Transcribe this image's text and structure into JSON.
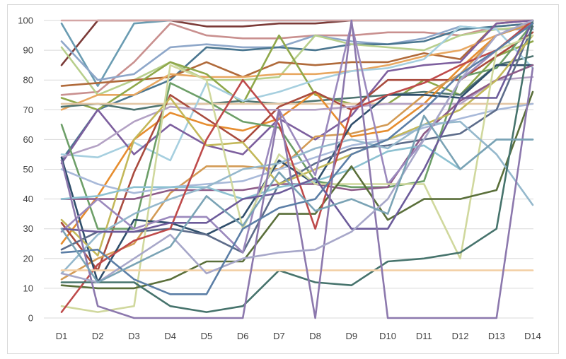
{
  "chart_data": {
    "type": "line",
    "title": "",
    "xlabel": "",
    "ylabel": "",
    "ylim": [
      0,
      100
    ],
    "yticks": [
      0,
      10,
      20,
      30,
      40,
      50,
      60,
      70,
      80,
      90,
      100
    ],
    "grid": true,
    "legend": "none",
    "categories": [
      "D1",
      "D2",
      "D3",
      "D4",
      "D5",
      "D6",
      "D7",
      "D8",
      "D9",
      "D10",
      "D11",
      "D12",
      "D13",
      "D14"
    ],
    "series": [
      {
        "color": "#7b3a37",
        "values": [
          85,
          100,
          100,
          100,
          98,
          98,
          99,
          99,
          100,
          100,
          100,
          100,
          100,
          100
        ]
      },
      {
        "color": "#6a9cb2",
        "values": [
          99,
          78,
          99,
          100,
          100,
          100,
          100,
          100,
          100,
          100,
          100,
          100,
          100,
          100
        ]
      },
      {
        "color": "#d4a6a5",
        "values": [
          100,
          100,
          100,
          100,
          100,
          100,
          100,
          100,
          100,
          100,
          100,
          100,
          100,
          100
        ]
      },
      {
        "color": "#c9908f",
        "values": [
          75,
          76,
          86,
          99,
          95,
          94,
          94,
          95,
          95,
          96,
          96,
          95,
          98,
          99
        ]
      },
      {
        "color": "#8ea7c9",
        "values": [
          93,
          80,
          82,
          91,
          92,
          91,
          91,
          95,
          93,
          92,
          94,
          98,
          97,
          97
        ]
      },
      {
        "color": "#4a7690",
        "values": [
          53,
          70,
          75,
          80,
          91,
          90,
          91,
          90,
          92,
          92,
          93,
          97,
          98,
          99
        ]
      },
      {
        "color": "#b7cf8c",
        "values": [
          91,
          75,
          80,
          86,
          80,
          80,
          81,
          95,
          92,
          91,
          90,
          95,
          97,
          98
        ]
      },
      {
        "color": "#b06a3a",
        "values": [
          78,
          79,
          80,
          81,
          86,
          81,
          86,
          85,
          86,
          86,
          89,
          87,
          99,
          100
        ]
      },
      {
        "color": "#e8a760",
        "values": [
          70,
          75,
          75,
          82,
          81,
          81,
          82,
          82,
          83,
          85,
          88,
          90,
          95,
          100
        ]
      },
      {
        "color": "#8fa84a",
        "values": [
          74,
          70,
          78,
          86,
          82,
          72,
          95,
          75,
          72,
          72,
          80,
          75,
          88,
          93
        ]
      },
      {
        "color": "#4e7470",
        "values": [
          71,
          72,
          70,
          72,
          72,
          73,
          72,
          73,
          74,
          75,
          76,
          75,
          85,
          88
        ]
      },
      {
        "color": "#e3c6a5",
        "values": [
          72,
          72,
          72,
          72,
          72,
          72,
          72,
          72,
          72,
          72,
          72,
          72,
          72,
          72
        ]
      },
      {
        "color": "#a6cfdf",
        "values": [
          55,
          54,
          59,
          53,
          79,
          73,
          76,
          80,
          83,
          84,
          87,
          98,
          97,
          84
        ]
      },
      {
        "color": "#7d5f9e",
        "values": [
          52,
          70,
          55,
          65,
          58,
          55,
          67,
          60,
          68,
          83,
          85,
          86,
          99,
          100
        ]
      },
      {
        "color": "#e68d2f",
        "values": [
          25,
          41,
          60,
          69,
          65,
          63,
          67,
          76,
          61,
          63,
          72,
          84,
          95,
          99
        ]
      },
      {
        "color": "#a94b3e",
        "values": [
          32,
          16,
          49,
          75,
          67,
          59,
          71,
          76,
          70,
          80,
          80,
          80,
          88,
          96
        ]
      },
      {
        "color": "#b3a1c4",
        "values": [
          54,
          58,
          66,
          71,
          70,
          70,
          70,
          70,
          71,
          72,
          72,
          72,
          80,
          81
        ]
      },
      {
        "color": "#d39b55",
        "values": [
          13,
          20,
          25,
          42,
          51,
          51,
          50,
          61,
          62,
          65,
          75,
          82,
          95,
          99
        ]
      },
      {
        "color": "#6d9f68",
        "values": [
          65,
          30,
          30,
          79,
          73,
          66,
          64,
          46,
          44,
          44,
          46,
          81,
          84,
          99
        ]
      },
      {
        "color": "#a8b9d9",
        "values": [
          50,
          45,
          42,
          44,
          45,
          46,
          50,
          54,
          58,
          60,
          64,
          67,
          70,
          72
        ]
      },
      {
        "color": "#2f4e6b",
        "values": [
          54,
          12,
          33,
          32,
          28,
          34,
          53,
          45,
          65,
          75,
          75,
          74,
          85,
          85
        ]
      },
      {
        "color": "#5d6c8a",
        "values": [
          23,
          29,
          29,
          30,
          28,
          22,
          45,
          52,
          57,
          58,
          60,
          62,
          70,
          98
        ]
      },
      {
        "color": "#8d5b88",
        "values": [
          40,
          40,
          40,
          43,
          43,
          43,
          45,
          45,
          43,
          44,
          62,
          73,
          80,
          85
        ]
      },
      {
        "color": "#c3b85a",
        "values": [
          33,
          21,
          60,
          74,
          58,
          59,
          45,
          50,
          55,
          60,
          65,
          70,
          80,
          95
        ]
      },
      {
        "color": "#8dc1d1",
        "values": [
          40,
          41,
          44,
          44,
          44,
          40,
          44,
          46,
          50,
          56,
          58,
          50,
          60,
          60
        ]
      },
      {
        "color": "#9b89bd",
        "values": [
          29,
          40,
          30,
          34,
          34,
          22,
          70,
          48,
          99,
          45,
          60,
          80,
          90,
          100
        ]
      },
      {
        "color": "#d0d89d",
        "values": [
          4,
          2,
          4,
          85,
          80,
          30,
          55,
          45,
          45,
          45,
          45,
          20,
          90,
          95
        ]
      },
      {
        "color": "#5a6f3a",
        "values": [
          11,
          10,
          10,
          13,
          19,
          19,
          35,
          35,
          51,
          33,
          40,
          40,
          43,
          76
        ]
      },
      {
        "color": "#95b8cc",
        "values": [
          15,
          28,
          35,
          40,
          44,
          50,
          52,
          57,
          60,
          57,
          65,
          66,
          55,
          38
        ]
      },
      {
        "color": "#be4a4a",
        "values": [
          2,
          18,
          26,
          30,
          60,
          80,
          65,
          30,
          70,
          75,
          79,
          85,
          90,
          100
        ]
      },
      {
        "color": "#6c5b9a",
        "values": [
          30,
          29,
          29,
          32,
          32,
          40,
          42,
          47,
          30,
          30,
          50,
          74,
          74,
          100
        ]
      },
      {
        "color": "#46736c",
        "values": [
          12,
          12,
          12,
          4,
          2,
          4,
          16,
          12,
          11,
          19,
          20,
          22,
          30,
          100
        ]
      },
      {
        "color": "#f3cfa5",
        "values": [
          16,
          16,
          16,
          16,
          16,
          16,
          16,
          16,
          16,
          16,
          16,
          16,
          16,
          16
        ]
      },
      {
        "color": "#8c78ad",
        "values": [
          53,
          4,
          0,
          0,
          0,
          0,
          70,
          0,
          100,
          0,
          0,
          0,
          0,
          84
        ]
      },
      {
        "color": "#a7a7c9",
        "values": [
          15,
          12,
          20,
          28,
          15,
          20,
          22,
          23,
          29,
          40,
          60,
          80,
          95,
          100
        ]
      },
      {
        "color": "#5b7ea6",
        "values": [
          22,
          23,
          13,
          8,
          8,
          30,
          37,
          40,
          55,
          60,
          70,
          82,
          90,
          99
        ]
      },
      {
        "color": "#7aa3b5",
        "values": [
          30,
          12,
          18,
          24,
          41,
          31,
          49,
          36,
          40,
          35,
          68,
          50,
          60,
          60
        ]
      }
    ]
  }
}
